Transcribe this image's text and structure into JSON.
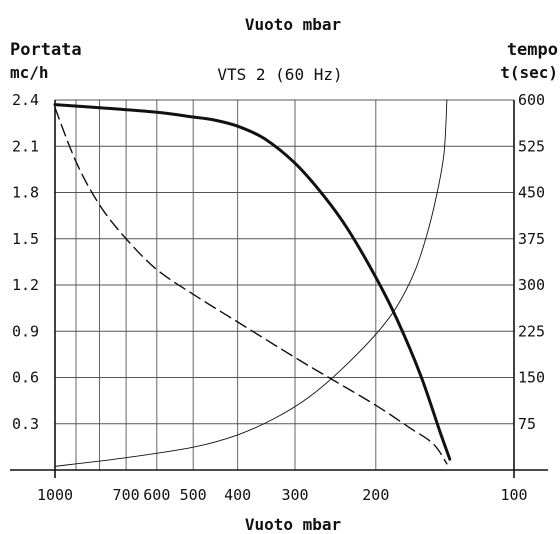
{
  "chart_data": {
    "type": "line",
    "title": "VTS 2 (60 Hz)",
    "top_axis_label": "Vuoto mbar",
    "xlabel": "Vuoto mbar",
    "ylabel_left_line1": "Portata",
    "ylabel_left_line2": "mc/h",
    "ylabel_right_line1": "tempo",
    "ylabel_right_line2": "t(sec)",
    "x_scale": "log",
    "x_reversed": true,
    "xlim": [
      1000,
      100
    ],
    "x_gridlines": [
      1000,
      900,
      800,
      700,
      600,
      500,
      400,
      300,
      200,
      100
    ],
    "x_ticks": [
      {
        "value": 1000,
        "label": "1000"
      },
      {
        "value": 700,
        "label": "700"
      },
      {
        "value": 600,
        "label": "600"
      },
      {
        "value": 500,
        "label": "500"
      },
      {
        "value": 400,
        "label": "400"
      },
      {
        "value": 300,
        "label": "300"
      },
      {
        "value": 200,
        "label": "200"
      },
      {
        "value": 100,
        "label": "100"
      }
    ],
    "ylim_left": [
      0,
      2.4
    ],
    "y_ticks_left": [
      {
        "value": 2.4,
        "label": "2.4"
      },
      {
        "value": 2.1,
        "label": "2.1"
      },
      {
        "value": 1.8,
        "label": "1.8"
      },
      {
        "value": 1.5,
        "label": "1.5"
      },
      {
        "value": 1.2,
        "label": "1.2"
      },
      {
        "value": 0.9,
        "label": "0.9"
      },
      {
        "value": 0.6,
        "label": "0.6"
      },
      {
        "value": 0.3,
        "label": "0.3"
      }
    ],
    "ylim_right": [
      0,
      600
    ],
    "y_ticks_right": [
      {
        "value": 600,
        "label": "600"
      },
      {
        "value": 525,
        "label": "525"
      },
      {
        "value": 450,
        "label": "450"
      },
      {
        "value": 375,
        "label": "375"
      },
      {
        "value": 300,
        "label": "300"
      },
      {
        "value": 225,
        "label": "225"
      },
      {
        "value": 150,
        "label": "150"
      },
      {
        "value": 75,
        "label": "75"
      }
    ],
    "grid": true,
    "series": [
      {
        "style": "solid-thick",
        "axis": "left",
        "color": "#111111",
        "points": [
          [
            1000,
            2.37
          ],
          [
            800,
            2.35
          ],
          [
            600,
            2.32
          ],
          [
            500,
            2.29
          ],
          [
            450,
            2.27
          ],
          [
            400,
            2.23
          ],
          [
            350,
            2.15
          ],
          [
            300,
            1.99
          ],
          [
            260,
            1.78
          ],
          [
            230,
            1.56
          ],
          [
            200,
            1.25
          ],
          [
            180,
            0.98
          ],
          [
            160,
            0.62
          ],
          [
            145,
            0.25
          ],
          [
            138,
            0.07
          ]
        ]
      },
      {
        "style": "dashed",
        "axis": "left",
        "color": "#111111",
        "points": [
          [
            1000,
            2.35
          ],
          [
            900,
            2.0
          ],
          [
            800,
            1.72
          ],
          [
            700,
            1.5
          ],
          [
            600,
            1.3
          ],
          [
            500,
            1.14
          ],
          [
            400,
            0.96
          ],
          [
            300,
            0.73
          ],
          [
            250,
            0.59
          ],
          [
            200,
            0.42
          ],
          [
            170,
            0.28
          ],
          [
            150,
            0.17
          ],
          [
            140,
            0.04
          ]
        ]
      },
      {
        "style": "solid-thin",
        "axis": "right",
        "color": "#111111",
        "points": [
          [
            1000,
            6
          ],
          [
            700,
            20
          ],
          [
            500,
            37
          ],
          [
            400,
            57
          ],
          [
            330,
            85
          ],
          [
            280,
            118
          ],
          [
            240,
            160
          ],
          [
            200,
            220
          ],
          [
            180,
            265
          ],
          [
            165,
            320
          ],
          [
            155,
            380
          ],
          [
            147,
            450
          ],
          [
            142,
            515
          ],
          [
            140,
            600
          ]
        ]
      }
    ]
  }
}
